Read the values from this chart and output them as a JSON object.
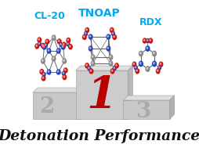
{
  "title": "Detonation Performance",
  "label_1": "TNOAP",
  "label_2": "CL-20",
  "label_3": "RDX",
  "rank_1": "1",
  "rank_2": "2",
  "rank_3": "3",
  "rank1_color": "#bb0000",
  "rank23_color": "#aaaaaa",
  "label1_color": "#00aaee",
  "label2_color": "#00aaee",
  "label3_color": "#00aaee",
  "title_color": "#111111",
  "bg_color": "#ffffff",
  "podium_front": "#c8c8c8",
  "podium_top": "#dedede",
  "podium_side": "#b0b0b0",
  "podium_edge": "#999999"
}
